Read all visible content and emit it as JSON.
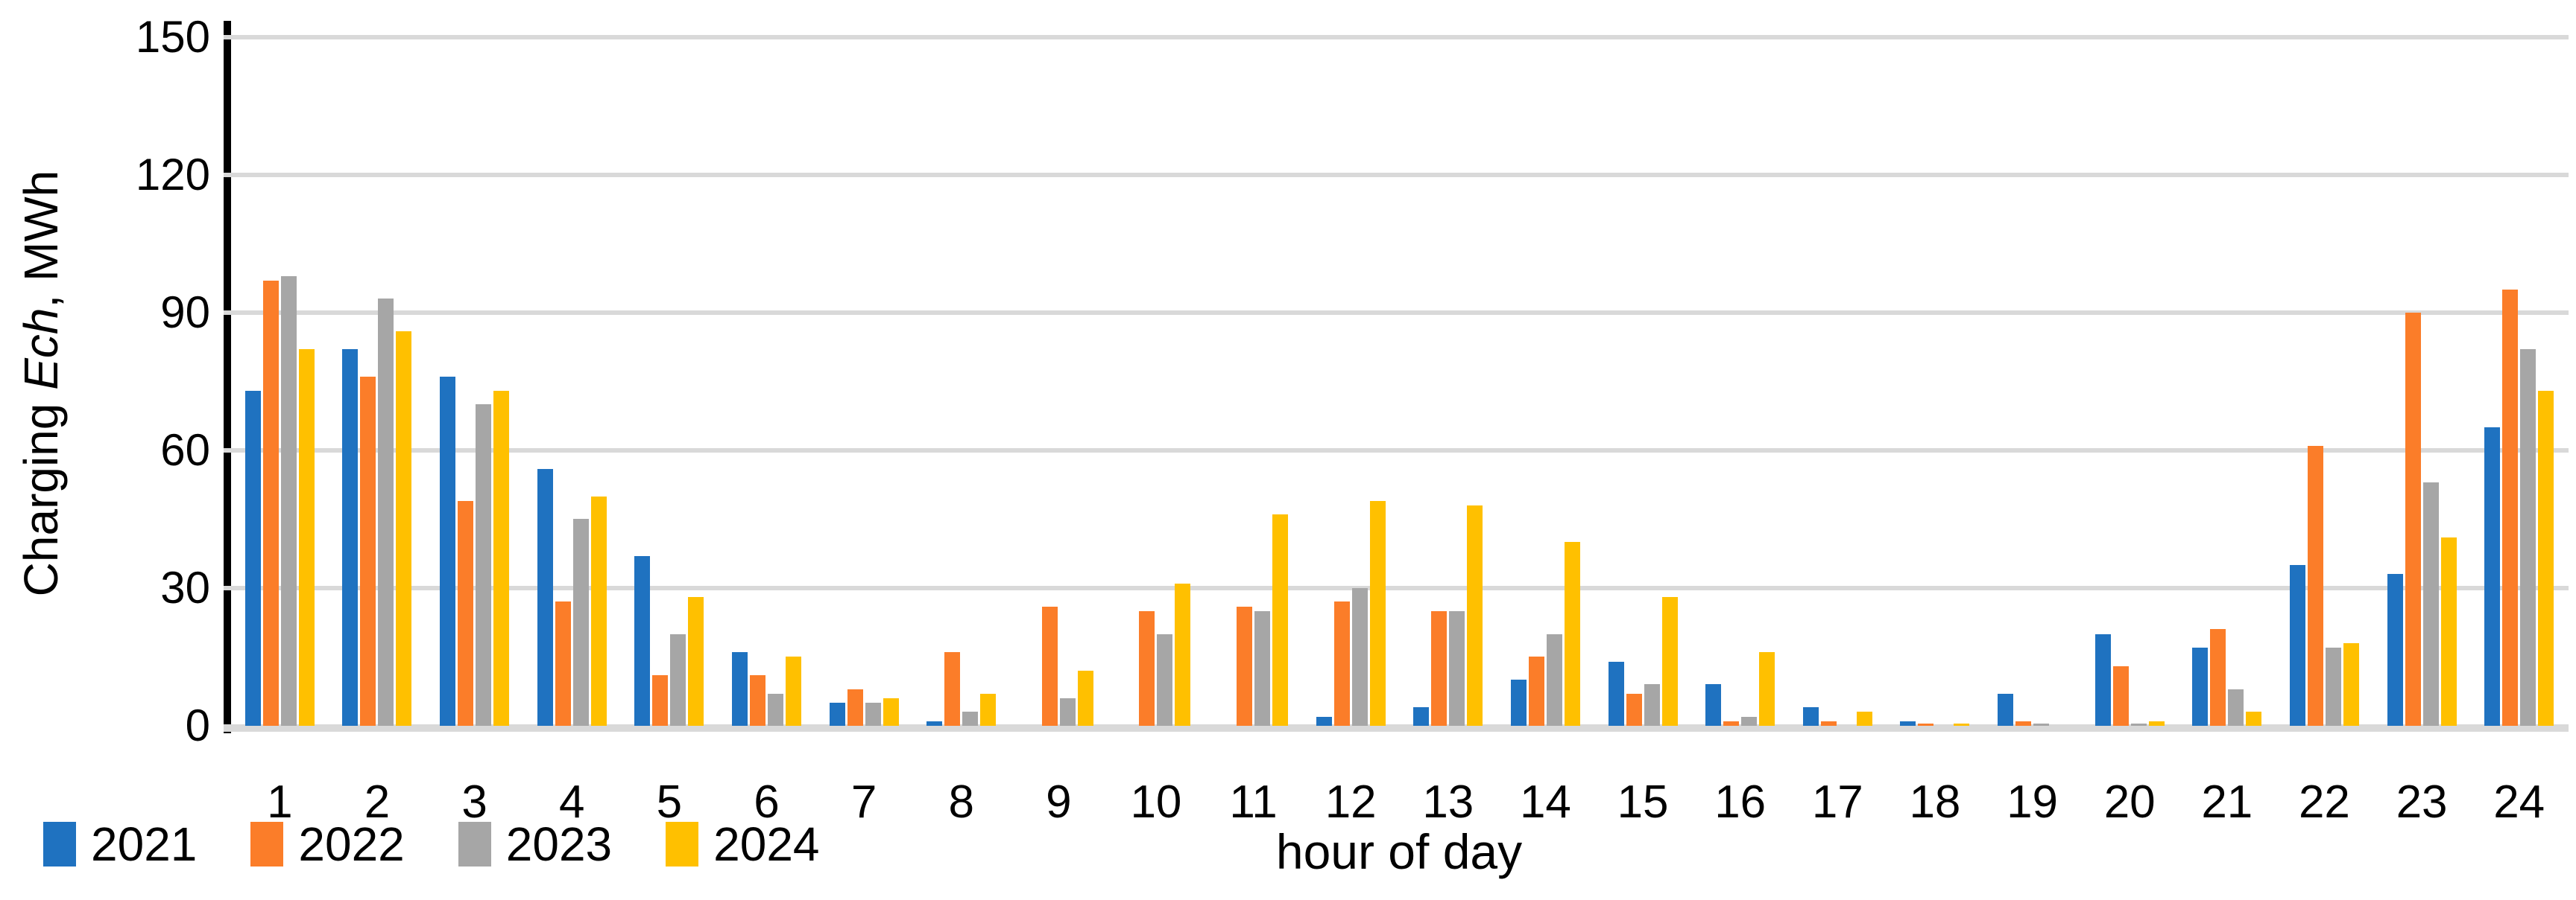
{
  "chart_data": {
    "type": "bar",
    "title": "",
    "xlabel": "hour of day",
    "ylabel_prefix": "Charging ",
    "ylabel_italic": "Ech",
    "ylabel_suffix": ", MWh",
    "ylim": [
      0,
      150
    ],
    "yticks": [
      0,
      30,
      60,
      90,
      120,
      150
    ],
    "ytick_labels": [
      "0",
      "30",
      "60",
      "90",
      "120",
      "150"
    ],
    "grid": true,
    "legend_position": "bottom-left",
    "categories": [
      "1",
      "2",
      "3",
      "4",
      "5",
      "6",
      "7",
      "8",
      "9",
      "10",
      "11",
      "12",
      "13",
      "14",
      "15",
      "16",
      "17",
      "18",
      "19",
      "20",
      "21",
      "22",
      "23",
      "24"
    ],
    "series": [
      {
        "name": "2021",
        "color": "#1f72c0",
        "values": [
          73,
          82,
          76,
          56,
          37,
          16,
          5,
          1,
          0,
          0,
          0,
          2,
          4,
          10,
          14,
          9,
          4,
          1,
          7,
          20,
          17,
          35,
          33,
          65
        ]
      },
      {
        "name": "2022",
        "color": "#fb7d29",
        "values": [
          97,
          76,
          49,
          27,
          11,
          11,
          8,
          16,
          26,
          25,
          26,
          27,
          25,
          15,
          7,
          1,
          1,
          0.5,
          1,
          13,
          21,
          61,
          90,
          95
        ]
      },
      {
        "name": "2023",
        "color": "#a6a6a6",
        "values": [
          98,
          93,
          70,
          45,
          20,
          7,
          5,
          3,
          6,
          20,
          25,
          30,
          25,
          20,
          9,
          2,
          0,
          0,
          0.5,
          0.5,
          8,
          17,
          53,
          82
        ]
      },
      {
        "name": "2024",
        "color": "#ffc000",
        "values": [
          82,
          86,
          73,
          50,
          28,
          15,
          6,
          7,
          12,
          31,
          46,
          49,
          48,
          40,
          28,
          16,
          3,
          0.5,
          0,
          1,
          3,
          18,
          41,
          73
        ]
      }
    ],
    "axis_color": "#000000",
    "gridline_color": "#d9d9d9"
  }
}
